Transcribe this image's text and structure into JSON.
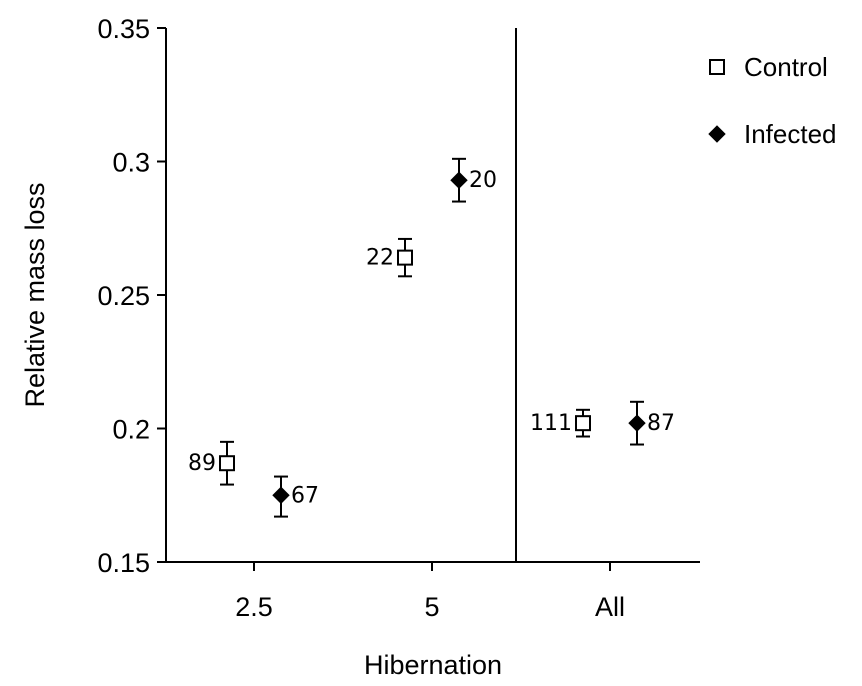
{
  "chart_data": {
    "type": "scatter",
    "xlabel": "Hibernation",
    "ylabel": "Relative mass loss",
    "ylim": [
      0.15,
      0.35
    ],
    "yticks": [
      "0.15",
      "0.2",
      "0.25",
      "0.3",
      "0.35"
    ],
    "categories": [
      "2.5",
      "5",
      "All"
    ],
    "grid": false,
    "legend_position": "top-right",
    "series": [
      {
        "name": "Control",
        "marker": "open-square",
        "color": "#000000",
        "points": [
          {
            "category": "2.5",
            "y": 0.187,
            "err_low": 0.179,
            "err_high": 0.195,
            "n": "89"
          },
          {
            "category": "5",
            "y": 0.264,
            "err_low": 0.257,
            "err_high": 0.271,
            "n": "22"
          },
          {
            "category": "All",
            "y": 0.202,
            "err_low": 0.197,
            "err_high": 0.207,
            "n": "111"
          }
        ]
      },
      {
        "name": "Infected",
        "marker": "filled-diamond",
        "color": "#000000",
        "points": [
          {
            "category": "2.5",
            "y": 0.175,
            "err_low": 0.167,
            "err_high": 0.182,
            "n": "67"
          },
          {
            "category": "5",
            "y": 0.293,
            "err_low": 0.285,
            "err_high": 0.301,
            "n": "20"
          },
          {
            "category": "All",
            "y": 0.202,
            "err_low": 0.194,
            "err_high": 0.21,
            "n": "87"
          }
        ]
      }
    ]
  }
}
